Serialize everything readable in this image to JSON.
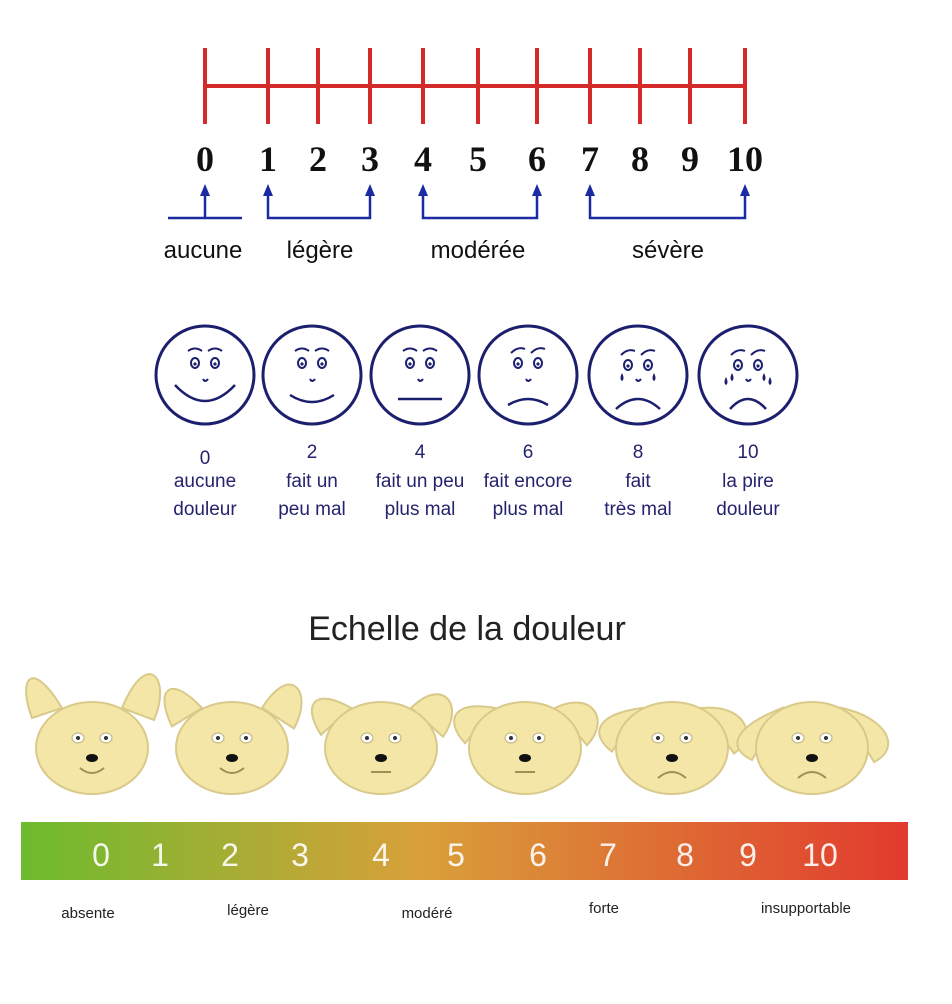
{
  "scale": {
    "numbers": [
      "0",
      "1",
      "2",
      "3",
      "4",
      "5",
      "6",
      "7",
      "8",
      "9",
      "10"
    ],
    "line_color": "#d42a2a",
    "bracket_color": "#1a2aa0",
    "categories": [
      {
        "label": "aucune",
        "from": 0,
        "to": 0
      },
      {
        "label": "légère",
        "from": 1,
        "to": 3
      },
      {
        "label": "modérée",
        "from": 4,
        "to": 6
      },
      {
        "label": "sévère",
        "from": 7,
        "to": 10
      }
    ]
  },
  "faces": {
    "stroke_color": "#1c1f6e",
    "items": [
      {
        "value": "0",
        "line1": "aucune",
        "line2": "douleur",
        "mood": 0
      },
      {
        "value": "2",
        "line1": "fait un",
        "line2": "peu mal",
        "mood": 1
      },
      {
        "value": "4",
        "line1": "fait un peu",
        "line2": "plus mal",
        "mood": 2
      },
      {
        "value": "6",
        "line1": "fait encore",
        "line2": "plus mal",
        "mood": 3
      },
      {
        "value": "8",
        "line1": "fait",
        "line2": "très mal",
        "mood": 4
      },
      {
        "value": "10",
        "line1": "la pire",
        "line2": "douleur",
        "mood": 5
      }
    ]
  },
  "bunny_scale": {
    "title": "Echelle de la douleur",
    "numbers": [
      "0",
      "1",
      "2",
      "3",
      "4",
      "5",
      "6",
      "7",
      "8",
      "9",
      "10"
    ],
    "gradient": [
      "#6dbb2e",
      "#d9a03a",
      "#e23a2e"
    ],
    "bunny_color": "#f3e6a6",
    "labels": [
      "absente",
      "légère",
      "modéré",
      "forte",
      "insupportable"
    ]
  }
}
